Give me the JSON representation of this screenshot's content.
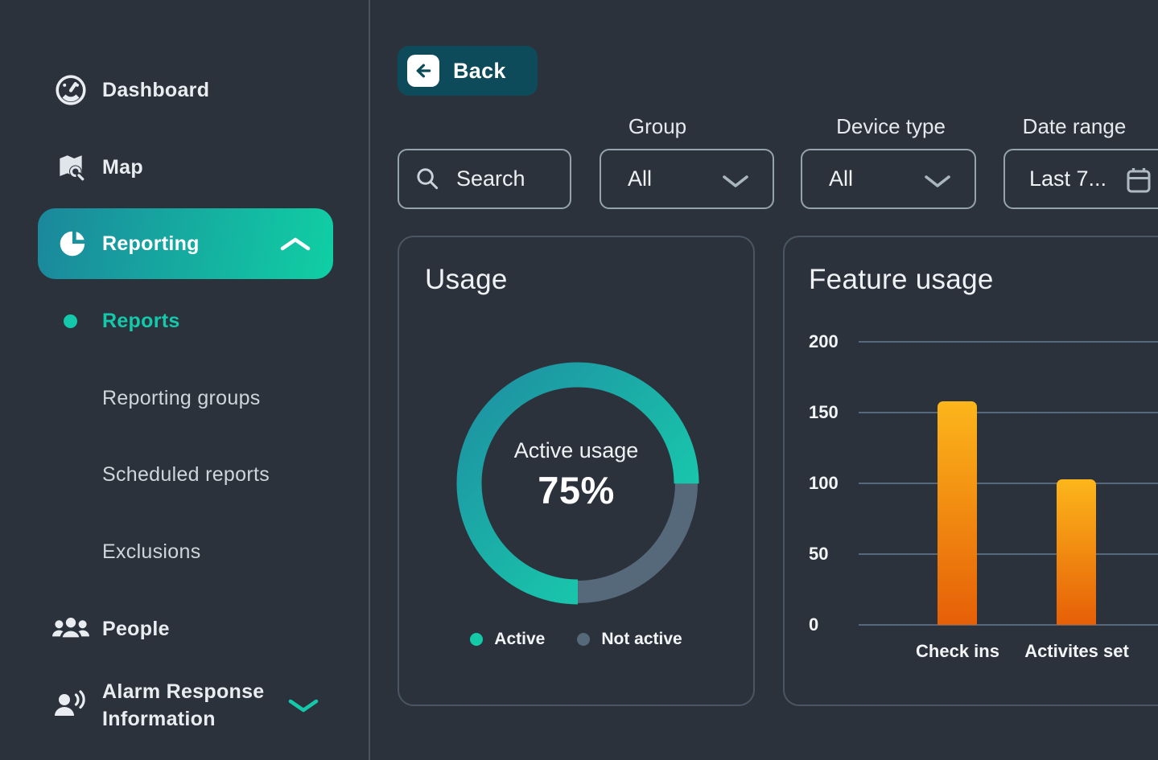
{
  "colors": {
    "background": "#2c323b",
    "accent_teal": "#14c8ab",
    "back_button_bg": "#0d4b5a",
    "reporting_gradient_start": "#1b879c",
    "reporting_gradient_end": "#10cfa4",
    "card_border": "#4a5663",
    "grid_line": "#56697c"
  },
  "sidebar": {
    "dashboard_label": "Dashboard",
    "map_label": "Map",
    "reporting_label": "Reporting",
    "reports_label": "Reports",
    "reporting_groups_label": "Reporting groups",
    "scheduled_reports_label": "Scheduled reports",
    "exclusions_label": "Exclusions",
    "people_label": "People",
    "alarm_label": "Alarm Response Information"
  },
  "toolbar": {
    "back_label": "Back",
    "search_placeholder": "Search",
    "group_label": "Group",
    "group_value": "All",
    "device_type_label": "Device type",
    "device_type_value": "All",
    "date_range_label": "Date range",
    "date_range_value": "Last 7..."
  },
  "chart_data": [
    {
      "type": "pie",
      "title": "Usage",
      "center_label": "Active usage",
      "center_value": "75%",
      "labels": [
        "Active",
        "Not active"
      ],
      "values": [
        75,
        25
      ],
      "colors": [
        "#14c9a8",
        "#56697b"
      ],
      "active_arc_gradient": [
        "#1e8fa2",
        "#17d6ae"
      ],
      "legend_position": "bottom",
      "donut": true
    },
    {
      "type": "bar",
      "title": "Feature usage",
      "categories": [
        "Check ins",
        "Activites set"
      ],
      "values": [
        158,
        103
      ],
      "yticks": [
        200,
        150,
        100,
        50,
        0
      ],
      "ylim": [
        0,
        200
      ],
      "xlabel": "",
      "ylabel": "",
      "grid": true,
      "bar_gradient": [
        "#fcb61b",
        "#e65f07"
      ]
    }
  ]
}
